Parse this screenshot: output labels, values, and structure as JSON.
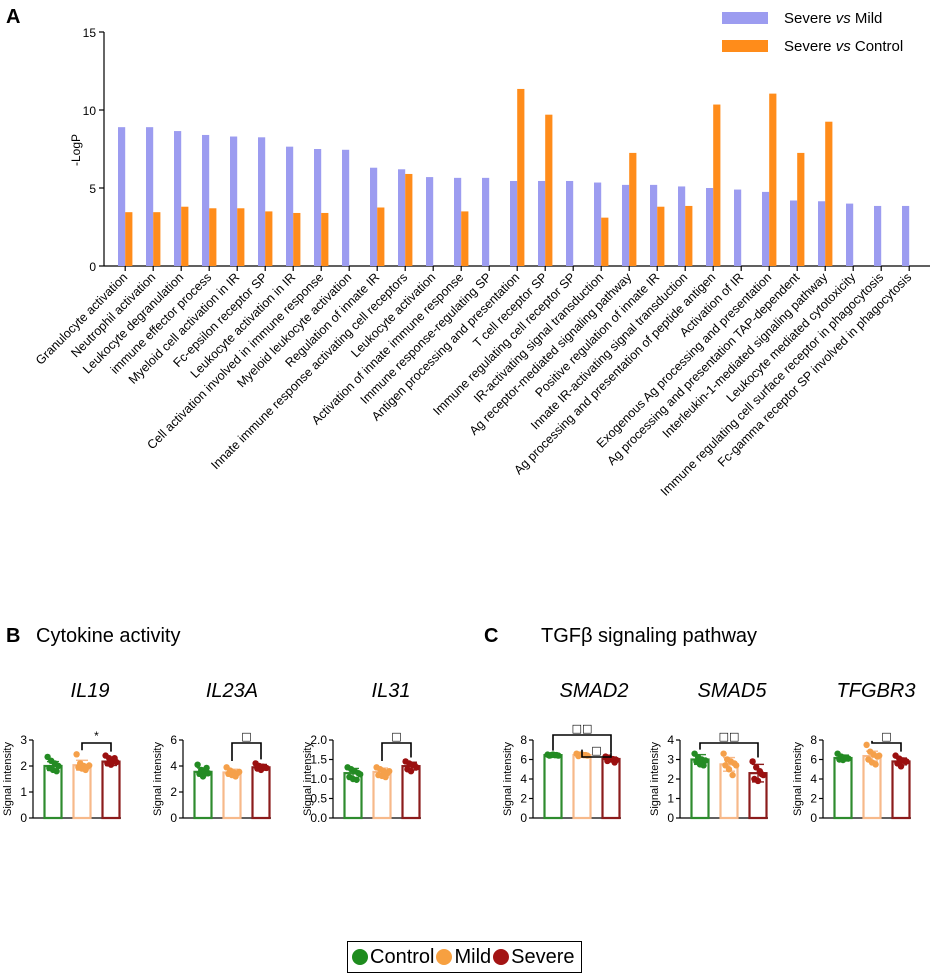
{
  "chart_data": [
    {
      "panel": "A",
      "type": "bar",
      "title": "",
      "ylabel": "-LogP",
      "xlabel": "",
      "ylim": [
        0,
        15
      ],
      "yticks": [
        0,
        5,
        10,
        15
      ],
      "legend_position": "top-right",
      "categories": [
        "Granulocyte activation",
        "Neutrophil activation",
        "Leukocyte degranulation",
        "immune effector process",
        "Myeloid cell activation in IR",
        "Fc-epsilon receptor SP",
        "Leukocyte activation in IR",
        "Cell activation involved in immune response",
        "Myeloid leukocyte activation",
        "Regulation of innate IR",
        "Innate immune response activating cell receptors",
        "Leukocyte activation",
        "Activation of innate immune response",
        "Immune response-regulating SP",
        "Antigen processing and presentation",
        "T cell receptor SP",
        "Immune regulating cell receptor SP",
        "IR-activating signal transduction",
        "Ag receptor-mediated signaling pathway",
        "Positive regulation of innate IR",
        "Innate IR-activating signal transduction",
        "Ag processing and presentation of peptide antigen",
        "Activation of IR",
        "Exogenous Ag processing and presentation",
        "Ag processing and presentation TAP-dependent",
        "Interleukin-1-mediated signaling pathway",
        "Leukocyte mediated cytotoxicity",
        "Immune regulating cell surface receptor in phagocytosis",
        "Fc-gamma receptor SP involved in phagocytosis"
      ],
      "series": [
        {
          "name": "Severe vs Mild",
          "color": "#9c9cf0",
          "values": [
            8.9,
            8.9,
            8.65,
            8.4,
            8.3,
            8.25,
            7.65,
            7.5,
            7.45,
            6.3,
            6.2,
            5.7,
            5.65,
            5.65,
            5.45,
            5.45,
            5.45,
            5.35,
            5.2,
            5.2,
            5.1,
            5.0,
            4.9,
            4.75,
            4.2,
            4.15,
            4.0,
            3.85,
            3.85
          ]
        },
        {
          "name": "Severe vs Control",
          "color": "#ff8c1a",
          "values": [
            3.45,
            3.45,
            3.8,
            3.7,
            3.7,
            3.5,
            3.4,
            3.4,
            null,
            3.75,
            5.9,
            null,
            3.5,
            null,
            11.35,
            9.7,
            null,
            3.1,
            7.25,
            3.8,
            3.85,
            10.35,
            null,
            11.05,
            7.25,
            9.25,
            null,
            null,
            null
          ]
        }
      ]
    },
    {
      "panel": "B",
      "gene": "IL19",
      "type": "bar",
      "ylabel": "Signal intensity",
      "ylim": [
        0,
        3
      ],
      "yticks": [
        0,
        1,
        2,
        3
      ],
      "categories": [
        "Control",
        "Mild",
        "Severe"
      ],
      "means": [
        2.0,
        2.03,
        2.17
      ],
      "errors": [
        0.17,
        0.19,
        0.15
      ],
      "points": [
        [
          2.35,
          2.2,
          2.1,
          2.0,
          1.92,
          1.85,
          1.8
        ],
        [
          2.45,
          2.1,
          2.0,
          1.97,
          1.95,
          1.9,
          1.85,
          2.02
        ],
        [
          2.4,
          2.3,
          2.2,
          2.15,
          2.1,
          2.05,
          2.3
        ]
      ],
      "significance": [
        {
          "from": 1,
          "to": 2,
          "label": "*"
        }
      ]
    },
    {
      "panel": "B",
      "gene": "IL23A",
      "type": "bar",
      "ylabel": "Signal intensity",
      "ylim": [
        0,
        6
      ],
      "yticks": [
        0,
        2,
        4,
        6
      ],
      "categories": [
        "Control",
        "Mild",
        "Severe"
      ],
      "means": [
        3.55,
        3.5,
        3.9
      ],
      "errors": [
        0.3,
        0.25,
        0.22
      ],
      "points": [
        [
          4.1,
          3.7,
          3.55,
          3.45,
          3.4,
          3.2,
          3.85
        ],
        [
          3.9,
          3.65,
          3.5,
          3.45,
          3.4,
          3.3,
          3.2,
          3.55
        ],
        [
          4.2,
          4.0,
          3.95,
          3.85,
          3.8,
          3.7,
          3.9
        ]
      ],
      "significance": [
        {
          "from": 1,
          "to": 2,
          "label": "□"
        }
      ]
    },
    {
      "panel": "B",
      "gene": "IL31",
      "type": "bar",
      "ylabel": "Signal intensity",
      "ylim": [
        0,
        2.0
      ],
      "yticks": [
        "0.0",
        "0.5",
        "1.0",
        "1.5",
        "2.0"
      ],
      "categories": [
        "Control",
        "Mild",
        "Severe"
      ],
      "means": [
        1.15,
        1.18,
        1.33
      ],
      "errors": [
        0.12,
        0.1,
        0.1
      ],
      "points": [
        [
          1.3,
          1.25,
          1.2,
          1.15,
          1.05,
          1.0,
          0.98,
          1.12
        ],
        [
          1.3,
          1.25,
          1.2,
          1.15,
          1.1,
          1.08,
          1.05,
          1.2
        ],
        [
          1.45,
          1.4,
          1.35,
          1.3,
          1.25,
          1.2,
          1.35
        ]
      ],
      "significance": [
        {
          "from": 1,
          "to": 2,
          "label": "□"
        }
      ]
    },
    {
      "panel": "C",
      "gene": "SMAD2",
      "type": "bar",
      "ylabel": "Signal intensity",
      "ylim": [
        0,
        8
      ],
      "yticks": [
        0,
        2,
        4,
        6,
        8
      ],
      "categories": [
        "Control",
        "Mild",
        "Severe"
      ],
      "means": [
        6.45,
        6.45,
        6.05
      ],
      "errors": [
        0.1,
        0.12,
        0.2
      ],
      "points": [
        [
          6.5,
          6.45,
          6.45,
          6.4,
          6.4,
          6.5,
          6.45
        ],
        [
          6.6,
          6.5,
          6.45,
          6.4,
          6.35,
          6.5,
          6.45
        ],
        [
          6.3,
          6.2,
          6.05,
          5.95,
          5.85,
          6.0,
          5.7
        ]
      ],
      "significance": [
        {
          "from": 0,
          "to": 2,
          "label": "□□"
        },
        {
          "from": 1,
          "to": 2,
          "label": "□"
        }
      ]
    },
    {
      "panel": "C",
      "gene": "SMAD5",
      "type": "bar",
      "ylabel": "Signal intensity",
      "ylim": [
        0,
        4
      ],
      "yticks": [
        0,
        1,
        2,
        3,
        4
      ],
      "categories": [
        "Control",
        "Mild",
        "Severe"
      ],
      "means": [
        3.0,
        2.75,
        2.3
      ],
      "errors": [
        0.25,
        0.35,
        0.45
      ],
      "points": [
        [
          3.3,
          3.1,
          3.0,
          2.95,
          2.9,
          2.75,
          2.7
        ],
        [
          3.3,
          3.0,
          2.9,
          2.8,
          2.7,
          2.5,
          2.2,
          2.7
        ],
        [
          2.9,
          2.6,
          2.4,
          2.2,
          2.0,
          1.9,
          2.25
        ]
      ],
      "significance": [
        {
          "from": 0,
          "to": 2,
          "label": "□□"
        }
      ]
    },
    {
      "panel": "C",
      "gene": "TFGBR3",
      "type": "bar",
      "ylabel": "Signal intensity",
      "ylim": [
        0,
        8
      ],
      "yticks": [
        0,
        2,
        4,
        6,
        8
      ],
      "categories": [
        "Control",
        "Mild",
        "Severe"
      ],
      "means": [
        6.15,
        6.35,
        5.8
      ],
      "errors": [
        0.3,
        0.5,
        0.35
      ],
      "points": [
        [
          6.6,
          6.3,
          6.2,
          6.1,
          6.0,
          5.95,
          6.15
        ],
        [
          7.5,
          6.8,
          6.5,
          6.3,
          6.0,
          5.7,
          5.5,
          6.4
        ],
        [
          6.4,
          6.1,
          5.9,
          5.8,
          5.6,
          5.3,
          5.85
        ]
      ],
      "significance": [
        {
          "from": 1,
          "to": 2,
          "label": "□"
        }
      ]
    }
  ],
  "panels": {
    "a_label": "A",
    "b_label": "B",
    "b_title": "Cytokine activity",
    "c_label": "C",
    "c_title": "TGFβ signaling pathway"
  },
  "legend_a": {
    "items": [
      {
        "pre": "Severe ",
        "italic": "vs",
        "post": " Mild",
        "color": "#9c9cf0"
      },
      {
        "pre": "Severe ",
        "italic": "vs",
        "post": " Control",
        "color": "#ff8c1a"
      }
    ]
  },
  "group_colors": {
    "Control": {
      "fill": "#ffffff",
      "edge": "#2e8b2e",
      "dot": "#238b23"
    },
    "Mild": {
      "fill": "#ffffff",
      "edge": "#f7b98a",
      "dot": "#f5a04a"
    },
    "Severe": {
      "fill": "#ffffff",
      "edge": "#8b1c1c",
      "dot": "#9b1010"
    }
  },
  "bottom_legend": {
    "items": [
      {
        "label": "Control",
        "color": "#1e8c1e"
      },
      {
        "label": "Mild",
        "color": "#f7a040"
      },
      {
        "label": "Severe",
        "color": "#a31414"
      }
    ]
  }
}
